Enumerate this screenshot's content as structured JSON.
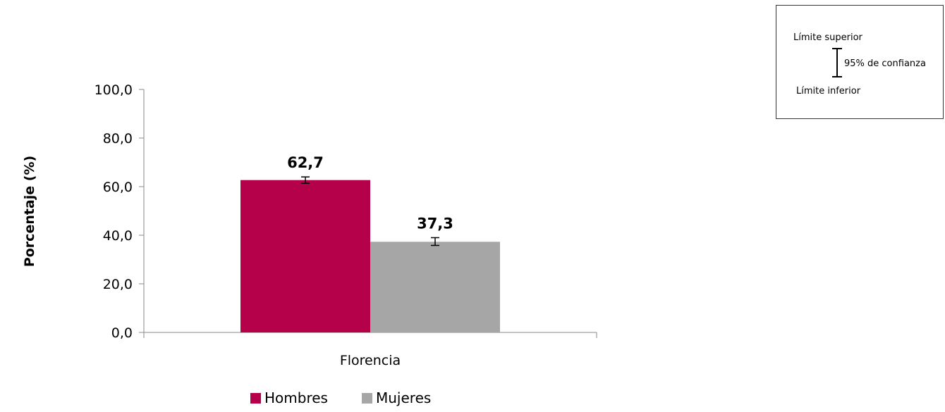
{
  "chart_data": {
    "type": "bar",
    "categories": [
      "Florencia"
    ],
    "series": [
      {
        "name": "Hombres",
        "values": [
          62.7
        ],
        "labels": [
          "62,7"
        ],
        "ci": [
          [
            61.4,
            64.0
          ]
        ],
        "color": "#b5004a"
      },
      {
        "name": "Mujeres",
        "values": [
          37.3
        ],
        "labels": [
          "37,3"
        ],
        "ci": [
          [
            35.8,
            39.0
          ]
        ],
        "color": "#a6a6a6"
      }
    ],
    "xlabel": "",
    "ylabel": "Porcentaje (%)",
    "ylim": [
      0,
      100
    ],
    "yticks": [
      0,
      20,
      40,
      60,
      80,
      100
    ],
    "ytick_labels": [
      "0,0",
      "20,0",
      "40,0",
      "60,0",
      "80,0",
      "100,0"
    ],
    "grid": false,
    "legend_position": "bottom"
  },
  "ci_legend": {
    "upper_label": "Límite superior",
    "middle_label": "95% de confianza",
    "lower_label": "Límite inferior"
  }
}
